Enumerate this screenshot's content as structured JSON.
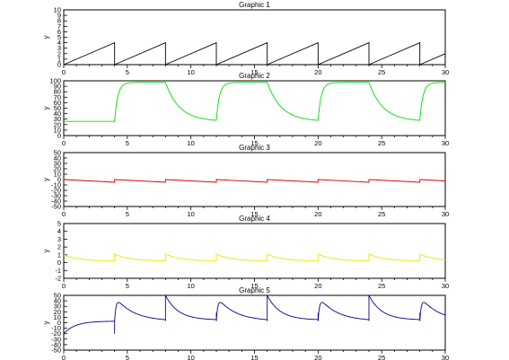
{
  "chart_data": [
    {
      "type": "line",
      "title": "Graphic 1",
      "ylabel": "y",
      "xlim": [
        0,
        30
      ],
      "ylim": [
        0,
        10
      ],
      "x_ticks": [
        0,
        5,
        10,
        15,
        20,
        25,
        30
      ],
      "y_ticks": [
        0,
        1,
        2,
        3,
        4,
        5,
        6,
        7,
        8,
        9,
        10
      ],
      "series": [
        {
          "color": "#000000",
          "kind": "sawtooth",
          "period": 4,
          "base": 0,
          "peak": 4,
          "description_points": [
            [
              0,
              0
            ],
            [
              4,
              4
            ],
            [
              4,
              0
            ],
            [
              8,
              4
            ],
            [
              8,
              0
            ],
            [
              12,
              4
            ],
            [
              12,
              0
            ],
            [
              16,
              4
            ],
            [
              16,
              0
            ],
            [
              20,
              4
            ],
            [
              20,
              0
            ],
            [
              24,
              4
            ],
            [
              24,
              0
            ],
            [
              28,
              4
            ],
            [
              28,
              0
            ],
            [
              30,
              2
            ]
          ]
        }
      ]
    },
    {
      "type": "line",
      "title": "Graphic 2",
      "ylabel": "y",
      "xlim": [
        0,
        30
      ],
      "ylim": [
        0,
        100
      ],
      "x_ticks": [
        0,
        5,
        10,
        15,
        20,
        25,
        30
      ],
      "y_ticks": [
        0,
        10,
        20,
        30,
        40,
        50,
        60,
        70,
        80,
        90,
        100
      ],
      "series": [
        {
          "color": "#00dd00",
          "kind": "step_response",
          "period": 4,
          "low": 26,
          "high": 97,
          "initial_low_until": 4
        }
      ]
    },
    {
      "type": "line",
      "title": "Graphic 3",
      "ylabel": "y",
      "xlim": [
        0,
        30
      ],
      "ylim": [
        -50,
        50
      ],
      "x_ticks": [
        0,
        5,
        10,
        15,
        20,
        25,
        30
      ],
      "y_ticks": [
        -50,
        -40,
        -30,
        -20,
        -10,
        0,
        10,
        20,
        30,
        40,
        50
      ],
      "series": [
        {
          "color": "#dd0000",
          "kind": "small_ripple",
          "period": 4,
          "start": 0,
          "end": -5,
          "jump_to": 0
        }
      ]
    },
    {
      "type": "line",
      "title": "Graphic 4",
      "ylabel": "y",
      "xlim": [
        0,
        30
      ],
      "ylim": [
        -2,
        5
      ],
      "x_ticks": [
        0,
        5,
        10,
        15,
        20,
        25,
        30
      ],
      "y_ticks": [
        -2,
        -1,
        0,
        1,
        2,
        3,
        4,
        5
      ],
      "series": [
        {
          "color": "#e8e800",
          "kind": "decay_spike",
          "period": 4,
          "start": 1.0,
          "spike": 1.1,
          "floor": 0.2
        }
      ]
    },
    {
      "type": "line",
      "title": "Graphic 5",
      "ylabel": "y",
      "xlim": [
        0,
        30
      ],
      "ylim": [
        -50,
        50
      ],
      "x_ticks": [
        0,
        5,
        10,
        15,
        20,
        25,
        30
      ],
      "y_ticks": [
        -50,
        -40,
        -30,
        -20,
        -10,
        0,
        10,
        20,
        30,
        40,
        50
      ],
      "series": [
        {
          "color": "#000099",
          "kind": "dual_pulse",
          "period": 4,
          "start": -20,
          "first_rise_to": 3
        }
      ]
    }
  ]
}
